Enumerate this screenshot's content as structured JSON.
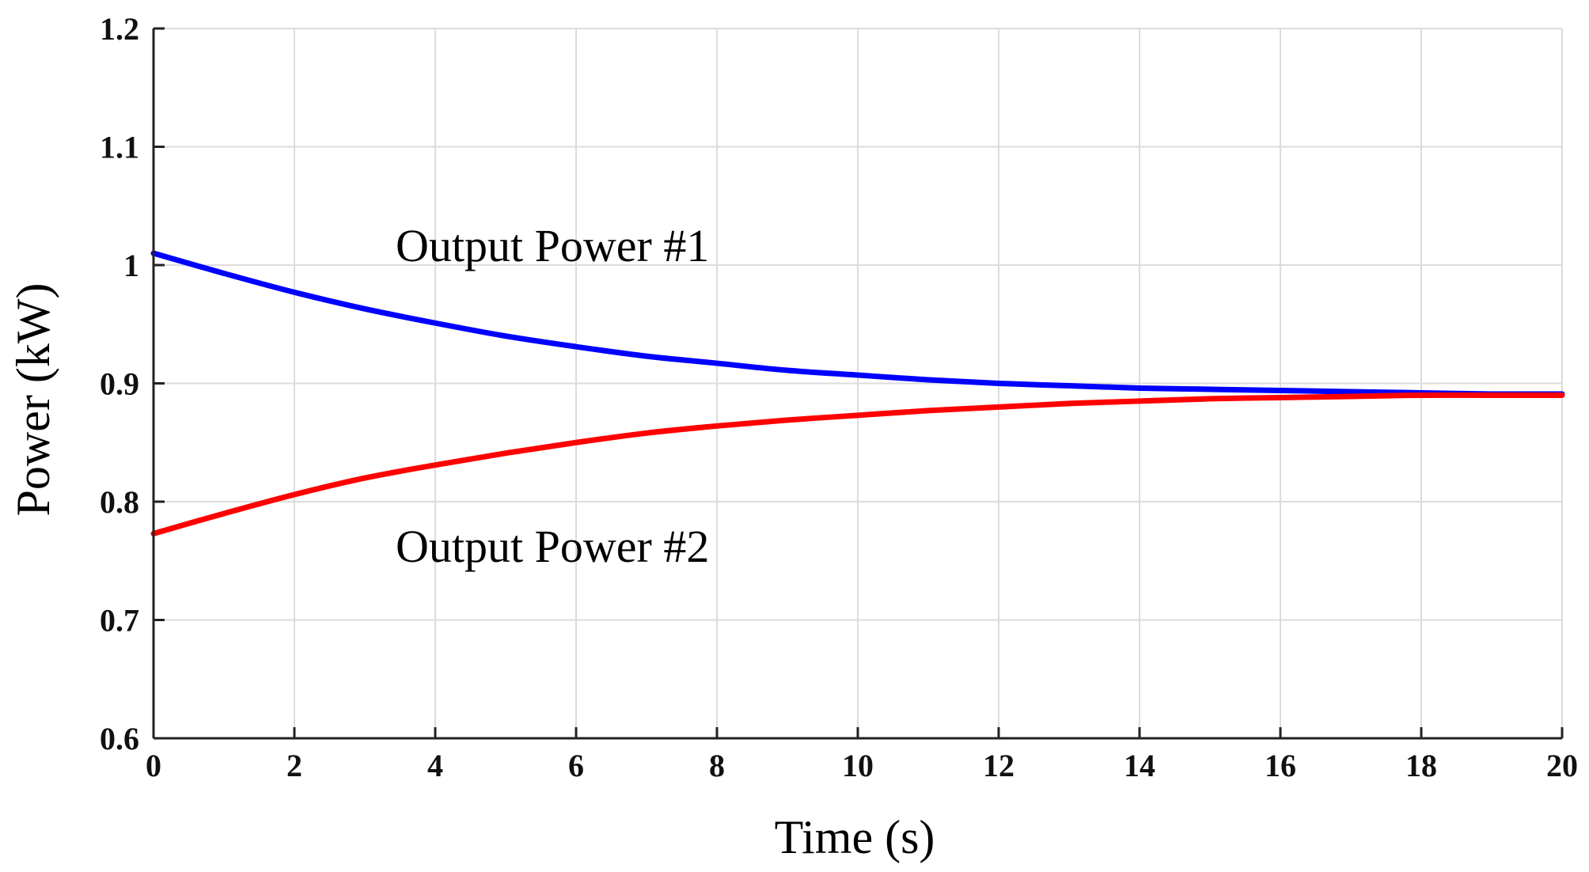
{
  "chart_data": {
    "type": "line",
    "xlabel": "Time (s)",
    "ylabel": "Power (kW)",
    "xlim": [
      0,
      20
    ],
    "ylim": [
      0.6,
      1.2
    ],
    "xticks": [
      0,
      2,
      4,
      6,
      8,
      10,
      12,
      14,
      16,
      18,
      20
    ],
    "xtick_labels": [
      "0",
      "2",
      "4",
      "6",
      "8",
      "10",
      "12",
      "14",
      "16",
      "18",
      "20"
    ],
    "yticks": [
      0.6,
      0.7,
      0.8,
      0.9,
      1.0,
      1.1,
      1.2
    ],
    "ytick_labels": [
      "0.6",
      "0.7",
      "0.8",
      "0.9",
      "1",
      "1.1",
      "1.2"
    ],
    "grid": true,
    "annotations": [
      "Output Power #1",
      "Output Power #2"
    ],
    "series": [
      {
        "color": "#0000ff",
        "x": [
          0,
          1,
          2,
          3,
          4,
          5,
          6,
          7,
          8,
          9,
          10,
          11,
          12,
          13,
          14,
          15,
          16,
          17,
          18,
          19,
          20
        ],
        "values": [
          1.01,
          0.993,
          0.977,
          0.963,
          0.951,
          0.94,
          0.931,
          0.923,
          0.917,
          0.911,
          0.907,
          0.903,
          0.9,
          0.898,
          0.896,
          0.895,
          0.894,
          0.893,
          0.892,
          0.891,
          0.891
        ]
      },
      {
        "color": "#ff0000",
        "x": [
          0,
          1,
          2,
          3,
          4,
          5,
          6,
          7,
          8,
          9,
          10,
          11,
          12,
          13,
          14,
          15,
          16,
          17,
          18,
          19,
          20
        ],
        "values": [
          0.773,
          0.79,
          0.806,
          0.82,
          0.831,
          0.841,
          0.85,
          0.858,
          0.864,
          0.869,
          0.873,
          0.877,
          0.88,
          0.883,
          0.885,
          0.887,
          0.888,
          0.889,
          0.89,
          0.89,
          0.89
        ]
      }
    ]
  }
}
